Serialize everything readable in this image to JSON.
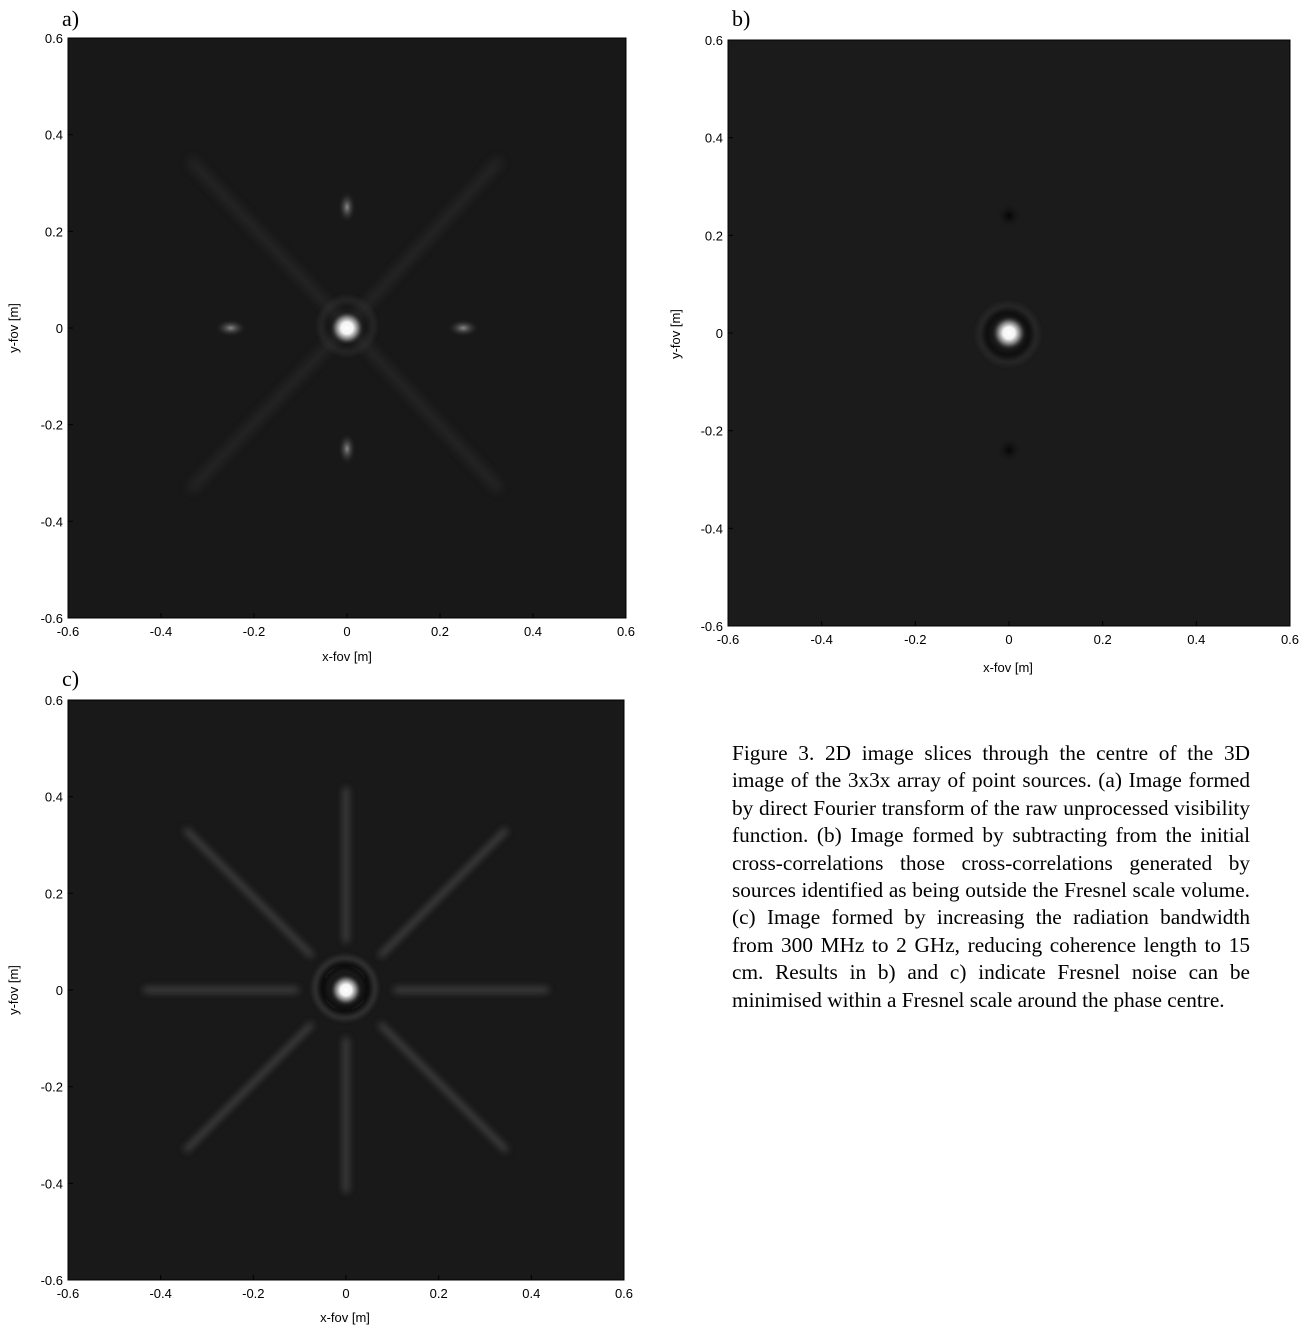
{
  "figure": {
    "caption": "Figure 3. 2D image slices through the centre of the 3D image of the 3x3x array of point sources. (a) Image formed by direct Fourier transform of the raw unprocessed visibility function. (b) Image formed by subtracting from the initial cross-correlations those cross-correlations generated by sources identified as being outside the Fresnel scale volume. (c) Image formed by increasing the radiation bandwidth from 300 MHz to 2 GHz, reducing coherence length to 15 cm. Results in b) and c) indicate Fresnel noise can be minimised within a Fresnel scale around the phase centre."
  },
  "chart_data": [
    {
      "type": "heatmap",
      "panel_label": "a)",
      "xlabel": "x-fov [m]",
      "ylabel": "y-fov [m]",
      "xlim": [
        -0.6,
        0.6
      ],
      "ylim": [
        -0.6,
        0.6
      ],
      "xticks": [
        "-0.6",
        "-0.4",
        "-0.2",
        "0",
        "0.2",
        "0.4",
        "0.6"
      ],
      "yticks": [
        "0.6",
        "0.4",
        "0.2",
        "0",
        "-0.2",
        "-0.4",
        "-0.6"
      ],
      "colormap": "gray",
      "background": "#181818",
      "peak": {
        "x": 0,
        "y": 0
      },
      "secondary_sources": [
        {
          "x": 0,
          "y": 0.25
        },
        {
          "x": 0,
          "y": -0.25
        },
        {
          "x": -0.25,
          "y": 0
        },
        {
          "x": 0.25,
          "y": 0
        }
      ],
      "diagonal_streaks": true
    },
    {
      "type": "heatmap",
      "panel_label": "b)",
      "xlabel": "x-fov [m]",
      "ylabel": "y-fov [m]",
      "xlim": [
        -0.6,
        0.6
      ],
      "ylim": [
        -0.6,
        0.6
      ],
      "xticks": [
        "-0.6",
        "-0.4",
        "-0.2",
        "0",
        "0.2",
        "0.4",
        "0.6"
      ],
      "yticks": [
        "0.6",
        "0.4",
        "0.2",
        "0",
        "-0.2",
        "-0.4",
        "-0.6"
      ],
      "colormap": "gray",
      "background": "#1b1b1b",
      "peak": {
        "x": 0,
        "y": 0
      },
      "dark_spots": [
        {
          "x": 0,
          "y": 0.24
        },
        {
          "x": 0,
          "y": -0.24
        }
      ]
    },
    {
      "type": "heatmap",
      "panel_label": "c)",
      "xlabel": "x-fov [m]",
      "ylabel": "y-fov [m]",
      "xlim": [
        -0.6,
        0.6
      ],
      "ylim": [
        -0.6,
        0.6
      ],
      "xticks": [
        "-0.6",
        "-0.4",
        "-0.2",
        "0",
        "0.2",
        "0.4",
        "0.6"
      ],
      "yticks": [
        "0.6",
        "0.4",
        "0.2",
        "0",
        "-0.2",
        "-0.4",
        "-0.6"
      ],
      "colormap": "gray",
      "background": "#191919",
      "peak": {
        "x": 0,
        "y": 0
      },
      "star_spokes": 8
    }
  ]
}
